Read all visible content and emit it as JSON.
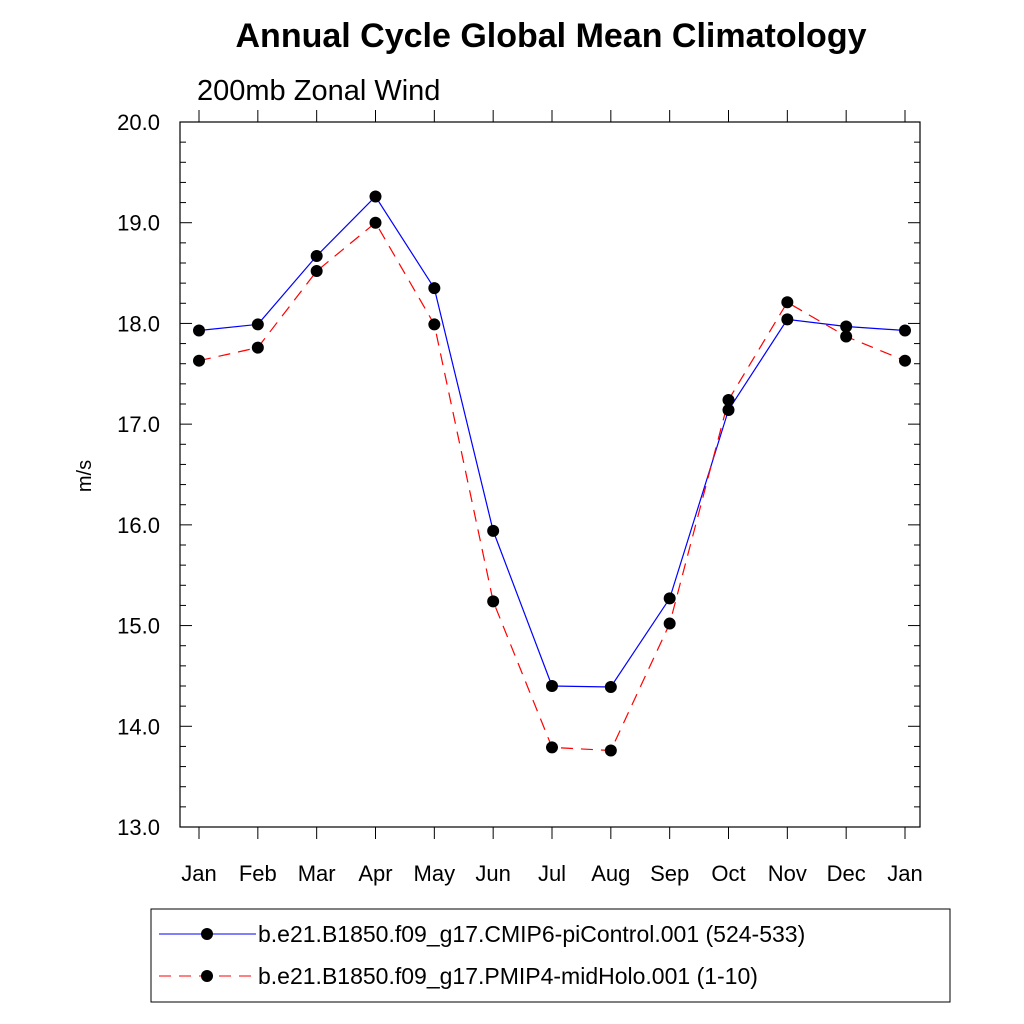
{
  "chart_data": {
    "type": "line",
    "title": "Annual Cycle Global Mean Climatology",
    "subtitle": "200mb Zonal Wind",
    "xlabel": "",
    "ylabel": "m/s",
    "ylim": [
      13.0,
      20.0
    ],
    "yticks": [
      "13.0",
      "14.0",
      "15.0",
      "16.0",
      "17.0",
      "18.0",
      "19.0",
      "20.0"
    ],
    "categories": [
      "Jan",
      "Feb",
      "Mar",
      "Apr",
      "May",
      "Jun",
      "Jul",
      "Aug",
      "Sep",
      "Oct",
      "Nov",
      "Dec",
      "Jan"
    ],
    "series": [
      {
        "name": "b.e21.B1850.f09_g17.CMIP6-piControl.001 (524-533)",
        "color": "#0000ff",
        "dash": "solid",
        "values": [
          17.93,
          17.99,
          18.67,
          19.26,
          18.35,
          15.94,
          14.4,
          14.39,
          15.27,
          17.14,
          18.04,
          17.97,
          17.93
        ]
      },
      {
        "name": "b.e21.B1850.f09_g17.PMIP4-midHolo.001 (1-10)",
        "color": "#ff0000",
        "dash": "dashed",
        "values": [
          17.63,
          17.76,
          18.52,
          19.0,
          17.99,
          15.24,
          13.79,
          13.76,
          15.02,
          17.24,
          18.21,
          17.87,
          17.63
        ]
      }
    ]
  }
}
